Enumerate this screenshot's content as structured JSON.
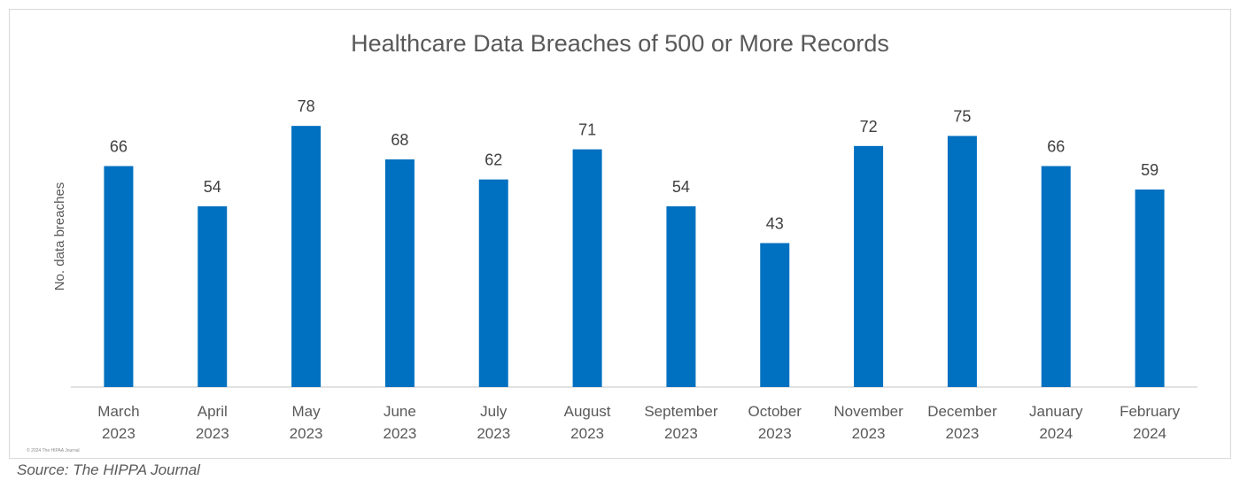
{
  "chart_data": {
    "type": "bar",
    "title": "Healthcare Data Breaches of 500 or More Records",
    "xlabel": "",
    "ylabel": "No. data breaches",
    "categories": [
      [
        "March",
        "2023"
      ],
      [
        "April",
        "2023"
      ],
      [
        "May",
        "2023"
      ],
      [
        "June",
        "2023"
      ],
      [
        "July",
        "2023"
      ],
      [
        "August",
        "2023"
      ],
      [
        "September",
        "2023"
      ],
      [
        "October",
        "2023"
      ],
      [
        "November",
        "2023"
      ],
      [
        "December",
        "2023"
      ],
      [
        "January",
        "2024"
      ],
      [
        "February",
        "2024"
      ]
    ],
    "values": [
      66,
      54,
      78,
      68,
      62,
      71,
      54,
      43,
      72,
      75,
      66,
      59
    ],
    "ylim": [
      0,
      80
    ],
    "grid": false,
    "legend": "none",
    "bar_color": "#0070C0"
  },
  "watermark": "© 2024 The HIPAA Journal",
  "source": "Source: The HIPPA Journal"
}
